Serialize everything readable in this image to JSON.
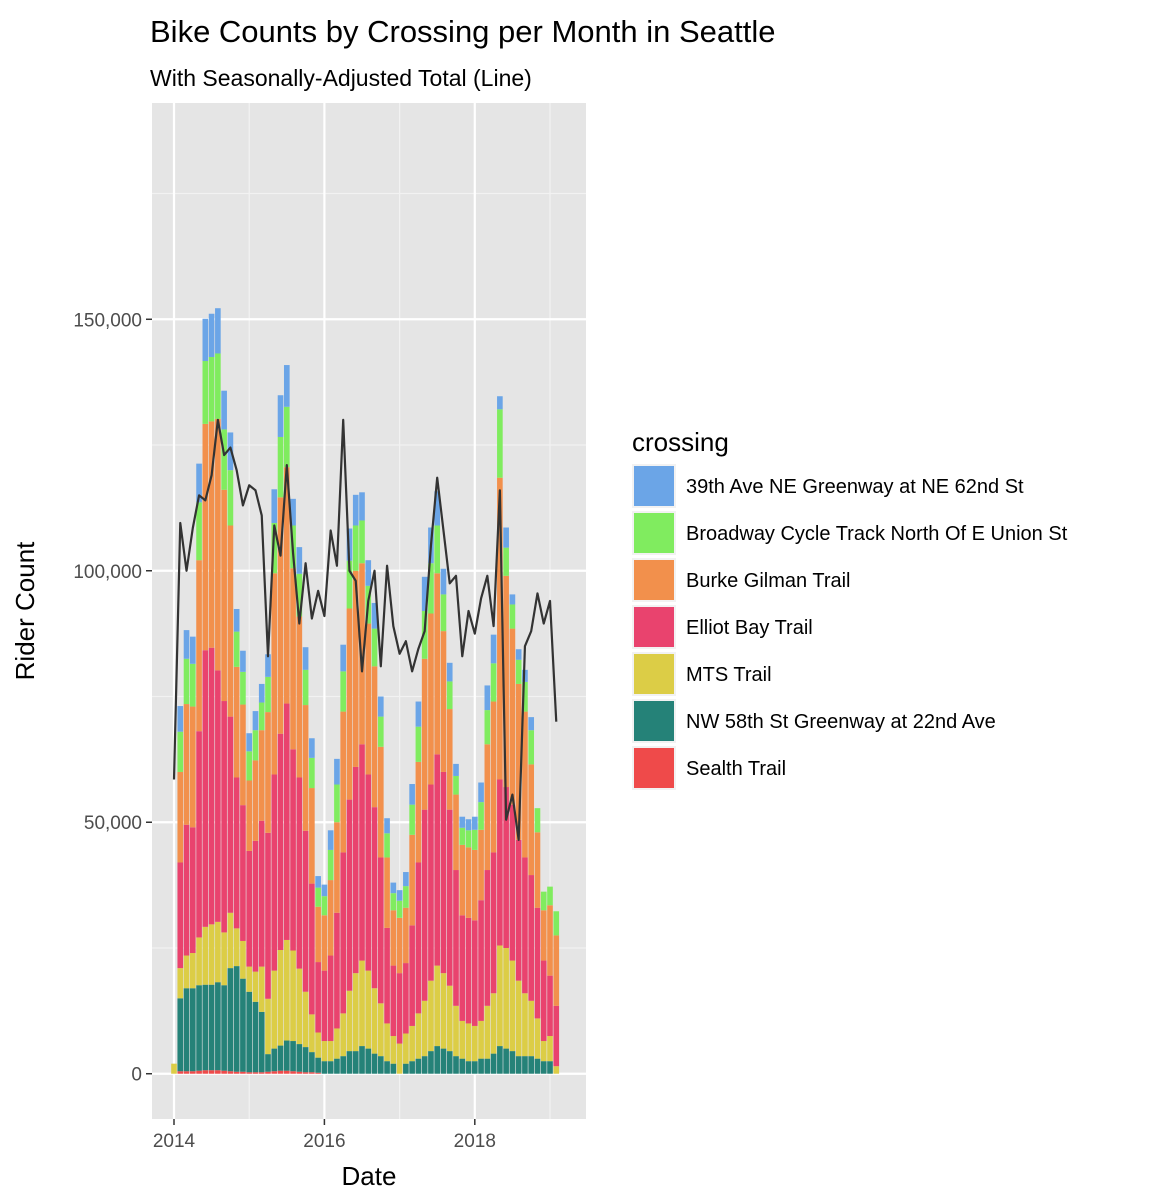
{
  "chart_data": {
    "type": "bar",
    "stacked": true,
    "title": "Bike Counts by Crossing per Month in Seattle",
    "subtitle": "With Seasonally-Adjusted Total (Line)",
    "xlabel": "Date",
    "ylabel": "Rider Count",
    "x_ticks": [
      "2014",
      "2016",
      "2018"
    ],
    "y_ticks": [
      "0",
      "50,000",
      "100,000",
      "150,000"
    ],
    "y_tick_values": [
      0,
      50000,
      100000,
      150000
    ],
    "ylim": [
      -9000,
      193000
    ],
    "grid": true,
    "legend_title": "crossing",
    "legend_position": "right",
    "start_month": "2014-01",
    "series": [
      {
        "name": "39th Ave NE Greenway at NE 62nd St",
        "color": "#6ba5e7",
        "values": [
          0,
          5100,
          5700,
          5400,
          7700,
          8400,
          8600,
          9000,
          7700,
          7500,
          4500,
          4200,
          3600,
          3800,
          3700,
          4500,
          6700,
          8300,
          8300,
          5300,
          5300,
          4500,
          3900,
          2300,
          2300,
          3900,
          5100,
          5300,
          6400,
          6100,
          5600,
          5100,
          5100,
          4000,
          3000,
          2100,
          2100,
          2800,
          4100,
          5000,
          6800,
          7100,
          6800,
          5100,
          3700,
          2400,
          2200,
          2200,
          2600,
          3900,
          4900,
          5700,
          2600,
          4000,
          2000,
          2100,
          2400,
          2600,
          0,
          0,
          0,
          0
        ]
      },
      {
        "name": "Broadway Cycle Track North Of E Union St",
        "color": "#80ec5f",
        "values": [
          0,
          8000,
          9000,
          8500,
          11500,
          12500,
          12800,
          13000,
          12000,
          11000,
          7000,
          6500,
          5800,
          6000,
          5500,
          7000,
          10000,
          12000,
          12000,
          8500,
          8500,
          7000,
          6000,
          3800,
          3800,
          6000,
          7500,
          8000,
          9500,
          9000,
          8500,
          7500,
          7500,
          6000,
          4800,
          3400,
          3400,
          4300,
          6000,
          7000,
          9500,
          10000,
          9500,
          7300,
          5500,
          3700,
          3400,
          3400,
          4000,
          5500,
          6800,
          7600,
          13600,
          5600,
          4800,
          4800,
          5900,
          6800,
          4800,
          3700,
          3700,
          4800
        ]
      },
      {
        "name": "Burke Gilman Trail",
        "color": "#f2904c",
        "values": [
          0,
          18000,
          24000,
          24000,
          34000,
          45000,
          45000,
          50000,
          42000,
          38000,
          22000,
          20000,
          14000,
          16000,
          18000,
          24000,
          40000,
          47000,
          47000,
          36000,
          32000,
          25000,
          19000,
          11000,
          11000,
          15000,
          18000,
          28000,
          38000,
          39000,
          36000,
          30000,
          28000,
          22000,
          14000,
          11000,
          11000,
          11000,
          18000,
          20000,
          30000,
          34000,
          36000,
          28000,
          20000,
          15000,
          14000,
          14000,
          14000,
          14000,
          25000,
          30000,
          60000,
          42000,
          35000,
          31000,
          29000,
          22000,
          15000,
          10000,
          14000,
          14000
        ]
      },
      {
        "name": "Elliot Bay Trail",
        "color": "#e9436e",
        "values": [
          0,
          21000,
          26000,
          25000,
          41000,
          55000,
          55000,
          50000,
          46000,
          39000,
          30000,
          27000,
          23000,
          26000,
          29000,
          33000,
          39000,
          43000,
          47000,
          40000,
          38000,
          32000,
          26000,
          14000,
          14000,
          17000,
          23000,
          32000,
          38000,
          41000,
          43000,
          39000,
          36000,
          29000,
          19000,
          14000,
          14000,
          14000,
          20000,
          30000,
          38000,
          39000,
          42000,
          40000,
          35000,
          27000,
          21000,
          21000,
          21000,
          24000,
          27000,
          28000,
          33000,
          32000,
          31000,
          28000,
          27000,
          25000,
          22000,
          16000,
          12000,
          12000
        ]
      },
      {
        "name": "MTS Trail",
        "color": "#dccd46",
        "values": [
          2000,
          6000,
          6500,
          7000,
          9500,
          11500,
          12000,
          12000,
          10500,
          11000,
          7500,
          7500,
          5000,
          6000,
          9000,
          11000,
          15500,
          19000,
          20000,
          18000,
          15000,
          11000,
          7500,
          5000,
          4000,
          4000,
          6000,
          8500,
          12000,
          15500,
          17000,
          15500,
          13000,
          10500,
          7500,
          5500,
          6000,
          6000,
          7000,
          9000,
          11000,
          14000,
          16000,
          15000,
          13000,
          10000,
          7500,
          7500,
          7000,
          7500,
          10500,
          12000,
          20000,
          20000,
          18000,
          15000,
          12500,
          11000,
          8000,
          4000,
          5000,
          1500
        ]
      },
      {
        "name": "NW 58th St Greenway at 22nd Ave",
        "color": "#258278",
        "values": [
          0,
          14500,
          16500,
          16500,
          17000,
          17000,
          17000,
          17500,
          17000,
          20500,
          21000,
          18500,
          16000,
          14000,
          12000,
          3500,
          4500,
          5000,
          6000,
          6000,
          5500,
          5000,
          4000,
          3000,
          2500,
          2500,
          3000,
          3500,
          4500,
          4500,
          5500,
          5000,
          4000,
          3500,
          2500,
          2000,
          0,
          2000,
          2500,
          3000,
          3500,
          4500,
          5500,
          5000,
          4500,
          3500,
          3000,
          2500,
          2500,
          3000,
          3000,
          4000,
          5500,
          5000,
          4500,
          3500,
          3500,
          3500,
          3000,
          2500,
          2500,
          0
        ]
      },
      {
        "name": "Sealth Trail",
        "color": "#ef4a4a",
        "values": [
          0,
          500,
          500,
          500,
          600,
          700,
          700,
          700,
          600,
          500,
          400,
          400,
          300,
          300,
          300,
          400,
          500,
          600,
          600,
          500,
          400,
          300,
          300,
          200,
          0,
          0,
          0,
          0,
          0,
          0,
          0,
          0,
          0,
          0,
          0,
          0,
          0,
          0,
          0,
          0,
          0,
          0,
          0,
          0,
          0,
          0,
          0,
          0,
          0,
          0,
          0,
          0,
          0,
          0,
          0,
          0,
          0,
          0,
          0,
          0,
          0,
          0
        ]
      }
    ],
    "line": {
      "name": "Seasonally-Adjusted Total",
      "color": "#333333",
      "values": [
        58500,
        109500,
        100000,
        108500,
        115000,
        114000,
        119000,
        130000,
        123000,
        124500,
        120000,
        113000,
        117000,
        116000,
        111000,
        83000,
        109000,
        103000,
        121000,
        103500,
        89500,
        101500,
        90500,
        96000,
        91000,
        108000,
        101000,
        130000,
        100000,
        98000,
        80000,
        94000,
        100000,
        81000,
        101000,
        89000,
        83500,
        86000,
        80000,
        84500,
        88000,
        105000,
        118500,
        108000,
        97500,
        99000,
        83000,
        92000,
        87500,
        94500,
        99000,
        89000,
        116000,
        50500,
        55500,
        46500,
        85000,
        88000,
        95500,
        89500,
        94000,
        70000
      ]
    }
  }
}
